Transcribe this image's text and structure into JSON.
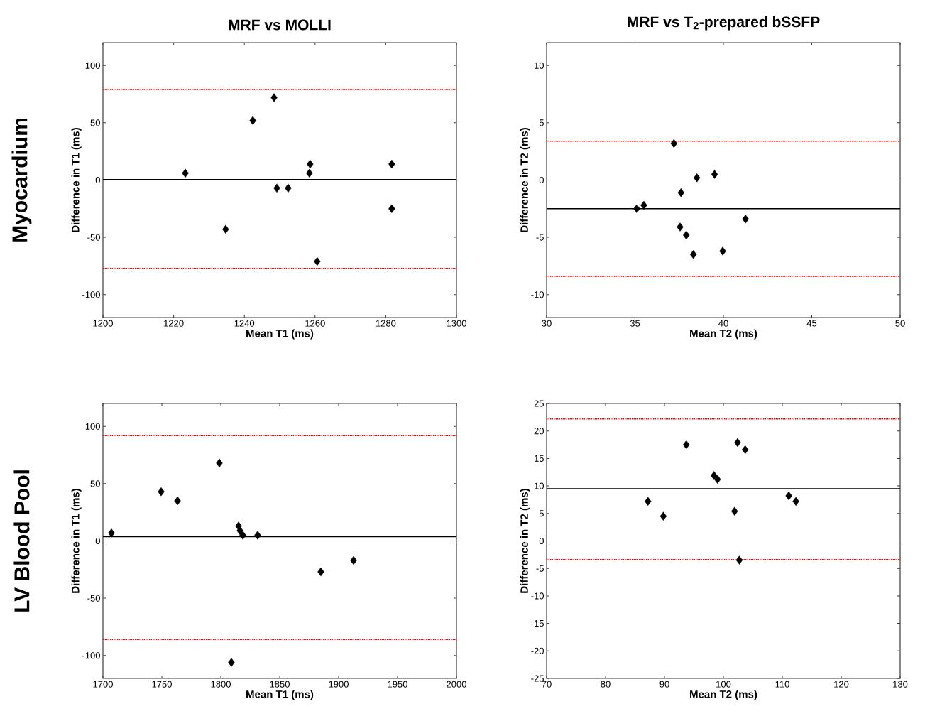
{
  "chart_data": [
    {
      "type": "scatter",
      "title": "MRF vs MOLLI",
      "xlabel": "Mean T1 (ms)",
      "ylabel": "Difference in T1 (ms)",
      "annotations": [
        "Myocardium"
      ],
      "marker": "diamond",
      "series": [
        {
          "color": "#000000",
          "x": [
            1223.3,
            1242.4,
            1248.4,
            1234.7,
            1249.2,
            1252.4,
            1258.6,
            1258.4,
            1260.6,
            1281.7,
            1281.7
          ],
          "values": [
            6,
            52,
            72,
            -43,
            -7,
            -7,
            14,
            6,
            -71,
            14,
            -25
          ]
        }
      ],
      "ref_lines": [
        {
          "axis": "y",
          "value": 0.5,
          "color": "#000000",
          "line_style": "solid"
        },
        {
          "axis": "y",
          "value": 79,
          "color": "#ff0000",
          "line_style": "dotted"
        },
        {
          "axis": "y",
          "value": -77,
          "color": "#ff0000",
          "line_style": "dotted"
        }
      ],
      "xlim": [
        1200,
        1300
      ],
      "ylim": [
        -120,
        120
      ],
      "xticks": [
        1200,
        1220,
        1240,
        1260,
        1280,
        1300
      ],
      "yticks": [
        -100,
        -50,
        0,
        50,
        100
      ]
    },
    {
      "type": "scatter",
      "title": "MRF vs T$_{2}$-prepared bSSFP",
      "xlabel": "Mean T2 (ms)",
      "ylabel": "Difference in T2 (ms)",
      "marker": "diamond",
      "series": [
        {
          "color": "#000000",
          "x": [
            35.1,
            35.5,
            37.2,
            37.6,
            37.55,
            37.9,
            38.3,
            38.5,
            39.5,
            39.96,
            41.25
          ],
          "values": [
            -2.5,
            -2.2,
            3.2,
            -1.1,
            -4.1,
            -4.8,
            -6.5,
            0.2,
            0.5,
            -6.2,
            -3.4
          ]
        }
      ],
      "ref_lines": [
        {
          "axis": "y",
          "value": -2.5,
          "color": "#000000",
          "line_style": "solid"
        },
        {
          "axis": "y",
          "value": 3.4,
          "color": "#ff0000",
          "line_style": "dotted"
        },
        {
          "axis": "y",
          "value": -8.4,
          "color": "#ff0000",
          "line_style": "dotted"
        }
      ],
      "xlim": [
        30,
        50
      ],
      "ylim": [
        -12,
        12
      ],
      "xticks": [
        30,
        35,
        40,
        45,
        50
      ],
      "yticks": [
        -10,
        -5,
        0,
        5,
        10
      ]
    },
    {
      "type": "scatter",
      "xlabel": "Mean T1 (ms)",
      "ylabel": "Difference in T1 (ms)",
      "annotations": [
        "LV Blood Pool"
      ],
      "marker": "diamond",
      "series": [
        {
          "color": "#000000",
          "x": [
            1707.2,
            1749.4,
            1763.3,
            1798.8,
            1815.1,
            1816.3,
            1818.7,
            1831.3,
            1884.9,
            1912.7,
            1809
          ],
          "values": [
            7,
            43,
            35,
            68,
            13,
            9,
            5,
            5,
            -27,
            -17,
            -106
          ]
        }
      ],
      "ref_lines": [
        {
          "axis": "y",
          "value": 3.7,
          "color": "#000000",
          "line_style": "solid"
        },
        {
          "axis": "y",
          "value": 92,
          "color": "#ff0000",
          "line_style": "dotted"
        },
        {
          "axis": "y",
          "value": -86,
          "color": "#ff0000",
          "line_style": "dotted"
        }
      ],
      "xlim": [
        1700,
        2000
      ],
      "ylim": [
        -120,
        120
      ],
      "xticks": [
        1700,
        1750,
        1800,
        1850,
        1900,
        1950,
        2000
      ],
      "yticks": [
        -100,
        -50,
        0,
        50,
        100
      ]
    },
    {
      "type": "scatter",
      "xlabel": "Mean T2 (ms)",
      "ylabel": "Difference in T2 (ms)",
      "marker": "diamond",
      "series": [
        {
          "color": "#000000",
          "x": [
            87.2,
            89.8,
            93.7,
            98.4,
            99.0,
            101.9,
            102.4,
            103.7,
            102.7,
            111.1,
            112.3
          ],
          "values": [
            7.2,
            4.5,
            17.5,
            11.9,
            11.2,
            5.4,
            17.9,
            16.6,
            -3.5,
            8.2,
            7.2
          ]
        }
      ],
      "ref_lines": [
        {
          "axis": "y",
          "value": 9.5,
          "color": "#000000",
          "line_style": "solid"
        },
        {
          "axis": "y",
          "value": 22.2,
          "color": "#ff0000",
          "line_style": "dotted"
        },
        {
          "axis": "y",
          "value": -3.4,
          "color": "#ff0000",
          "line_style": "dotted"
        }
      ],
      "xlim": [
        70,
        130
      ],
      "ylim": [
        -25,
        25
      ],
      "xticks": [
        70,
        80,
        90,
        100,
        110,
        120,
        130
      ],
      "yticks": [
        -25,
        -20,
        -15,
        -10,
        -5,
        0,
        5,
        10,
        15,
        20,
        25
      ]
    }
  ]
}
